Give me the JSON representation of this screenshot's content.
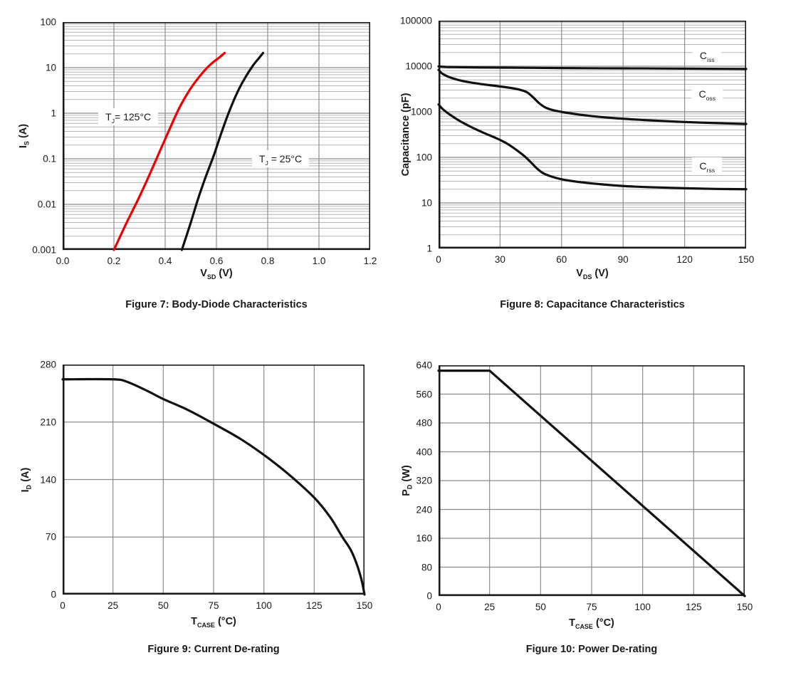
{
  "page": {
    "background": "#ffffff"
  },
  "colors": {
    "curve_black": "#111111",
    "curve_red": "#ee0000",
    "grid_minor": "#b6b6b6",
    "grid_major": "#8d8d8d",
    "axis": "#1a1a1a",
    "text": "#1a1a1a",
    "annotation_bg": "#ffffff"
  },
  "chart_data": [
    {
      "id": "figure-7",
      "type": "line",
      "caption": "Figure 7:  Body-Diode Characteristics",
      "xlabel": "V~SD~ (V)",
      "ylabel": "I~S~ (A)",
      "xscale": "linear",
      "yscale": "log",
      "xlim": [
        0,
        1.2
      ],
      "ylim": [
        0.001,
        100
      ],
      "xticks": {
        "values": [
          0,
          0.2,
          0.4,
          0.6,
          0.8,
          1.0,
          1.2
        ],
        "labels": [
          "0.0",
          "0.2",
          "0.4",
          "0.6",
          "0.8",
          "1.0",
          "1.2"
        ]
      },
      "yticks": {
        "values": [
          100,
          10,
          1,
          0.1,
          0.01,
          0.001
        ],
        "labels": [
          "100",
          "10",
          "1",
          "0.1",
          "0.01",
          "0.001"
        ]
      },
      "grid": {
        "vertical": [
          0.2,
          0.4,
          0.6,
          0.8,
          1.0
        ],
        "horizontal": "log-minor-and-major"
      },
      "series": [
        {
          "key": "tj-125c",
          "name": "T~J~= 125°C",
          "color": "#ee0000",
          "smooth": true,
          "points": [
            [
              0.2,
              0.001
            ],
            [
              0.25,
              0.004
            ],
            [
              0.295,
              0.013
            ],
            [
              0.335,
              0.04
            ],
            [
              0.375,
              0.13
            ],
            [
              0.415,
              0.42
            ],
            [
              0.455,
              1.3
            ],
            [
              0.495,
              3.2
            ],
            [
              0.535,
              6.5
            ],
            [
              0.575,
              11.5
            ],
            [
              0.61,
              16.5
            ],
            [
              0.632,
              21
            ]
          ]
        },
        {
          "key": "tj-25c",
          "name": "T~J~ = 25°C",
          "color": "#111111",
          "smooth": true,
          "points": [
            [
              0.465,
              0.001
            ],
            [
              0.5,
              0.004
            ],
            [
              0.528,
              0.013
            ],
            [
              0.558,
              0.04
            ],
            [
              0.59,
              0.12
            ],
            [
              0.62,
              0.38
            ],
            [
              0.65,
              1.1
            ],
            [
              0.682,
              2.9
            ],
            [
              0.712,
              6.0
            ],
            [
              0.742,
              11
            ],
            [
              0.765,
              16
            ],
            [
              0.782,
              21
            ]
          ]
        }
      ],
      "annotations": [
        {
          "key": "label-tj-125c",
          "text": "T~J~= 125°C",
          "x": 0.256,
          "y": 0.83
        },
        {
          "key": "label-tj-25c",
          "text": "T~J~ = 25°C",
          "x": 0.85,
          "y": 0.1
        }
      ]
    },
    {
      "id": "figure-8",
      "type": "line",
      "caption": "Figure 8:  Capacitance Characteristics",
      "xlabel": "V~DS~ (V)",
      "ylabel": "Capacitance (pF)",
      "xscale": "linear",
      "yscale": "log",
      "xlim": [
        0,
        150
      ],
      "ylim": [
        1,
        100000
      ],
      "xticks": {
        "values": [
          0,
          30,
          60,
          90,
          120,
          150
        ],
        "labels": [
          "0",
          "30",
          "60",
          "90",
          "120",
          "150"
        ]
      },
      "yticks": {
        "values": [
          100000,
          10000,
          1000,
          100,
          10,
          1
        ],
        "labels": [
          "100000",
          "10000",
          "1000",
          "100",
          "10",
          "1"
        ]
      },
      "grid": {
        "vertical": [
          30,
          60,
          90,
          120
        ],
        "horizontal": "log-minor-and-major"
      },
      "series": [
        {
          "key": "ciss",
          "name": "C~iss~",
          "color": "#111111",
          "smooth": true,
          "points": [
            [
              0,
              9900
            ],
            [
              5,
              9600
            ],
            [
              20,
              9400
            ],
            [
              40,
              9250
            ],
            [
              60,
              9100
            ],
            [
              80,
              9000
            ],
            [
              100,
              8950
            ],
            [
              120,
              8850
            ],
            [
              150,
              8700
            ]
          ]
        },
        {
          "key": "coss",
          "name": "C~oss~",
          "color": "#111111",
          "smooth": true,
          "points": [
            [
              0,
              8300
            ],
            [
              2,
              6800
            ],
            [
              6,
              5600
            ],
            [
              12,
              4700
            ],
            [
              20,
              4100
            ],
            [
              28,
              3700
            ],
            [
              34,
              3400
            ],
            [
              39,
              3100
            ],
            [
              43,
              2700
            ],
            [
              46,
              2100
            ],
            [
              49,
              1550
            ],
            [
              52,
              1250
            ],
            [
              56,
              1080
            ],
            [
              62,
              960
            ],
            [
              72,
              830
            ],
            [
              85,
              730
            ],
            [
              100,
              660
            ],
            [
              115,
              610
            ],
            [
              130,
              575
            ],
            [
              150,
              540
            ]
          ]
        },
        {
          "key": "crss",
          "name": "C~rss~",
          "color": "#111111",
          "smooth": true,
          "points": [
            [
              0,
              1450
            ],
            [
              2,
              1150
            ],
            [
              5,
              900
            ],
            [
              10,
              640
            ],
            [
              16,
              460
            ],
            [
              22,
              345
            ],
            [
              28,
              265
            ],
            [
              33,
              205
            ],
            [
              38,
              145
            ],
            [
              42,
              105
            ],
            [
              45,
              78
            ],
            [
              48,
              57
            ],
            [
              51,
              45
            ],
            [
              55,
              38
            ],
            [
              60,
              33
            ],
            [
              68,
              29
            ],
            [
              78,
              26
            ],
            [
              90,
              23.5
            ],
            [
              105,
              22
            ],
            [
              120,
              21
            ],
            [
              135,
              20.3
            ],
            [
              150,
              20
            ]
          ]
        }
      ],
      "annotations": [
        {
          "key": "label-ciss",
          "text": "C~iss~",
          "x": 131,
          "y": 17000
        },
        {
          "key": "label-coss",
          "text": "C~oss~",
          "x": 131,
          "y": 2500
        },
        {
          "key": "label-crss",
          "text": "C~rss~",
          "x": 131,
          "y": 66
        }
      ]
    },
    {
      "id": "figure-9",
      "type": "line",
      "caption": "Figure 9:  Current De-rating",
      "xlabel": "T~CASE~ (°C)",
      "ylabel": "I~D~ (A)",
      "xscale": "linear",
      "yscale": "linear",
      "xlim": [
        0,
        150
      ],
      "ylim": [
        0,
        280
      ],
      "xticks": {
        "values": [
          0,
          25,
          50,
          75,
          100,
          125,
          150
        ],
        "labels": [
          "0",
          "25",
          "50",
          "75",
          "100",
          "125",
          "150"
        ]
      },
      "yticks": {
        "values": [
          280,
          210,
          140,
          70,
          0
        ],
        "labels": [
          "280",
          "210",
          "140",
          "70",
          "0"
        ]
      },
      "grid": {
        "vertical": [
          25,
          50,
          75,
          100,
          125
        ],
        "horizontal_values": [
          70,
          140,
          210
        ]
      },
      "series": [
        {
          "key": "id-derating",
          "name": "I~D~ de-rating",
          "color": "#111111",
          "smooth": true,
          "points": [
            [
              0,
              262
            ],
            [
              25,
              262
            ],
            [
              32,
              259
            ],
            [
              42,
              248
            ],
            [
              50,
              238
            ],
            [
              62,
              225
            ],
            [
              75,
              208
            ],
            [
              88,
              190
            ],
            [
              100,
              170
            ],
            [
              112,
              147
            ],
            [
              125,
              118
            ],
            [
              133,
              94
            ],
            [
              139,
              70
            ],
            [
              143,
              55
            ],
            [
              146,
              38
            ],
            [
              148.5,
              18
            ],
            [
              150,
              0
            ]
          ]
        }
      ],
      "annotations": []
    },
    {
      "id": "figure-10",
      "type": "line",
      "caption": "Figure 10:  Power De-rating",
      "xlabel": "T~CASE~ (°C)",
      "ylabel": "P~D~ (W)",
      "xscale": "linear",
      "yscale": "linear",
      "xlim": [
        0,
        150
      ],
      "ylim": [
        0,
        640
      ],
      "xticks": {
        "values": [
          0,
          25,
          50,
          75,
          100,
          125,
          150
        ],
        "labels": [
          "0",
          "25",
          "50",
          "75",
          "100",
          "125",
          "150"
        ]
      },
      "yticks": {
        "values": [
          640,
          560,
          480,
          400,
          320,
          240,
          160,
          80,
          0
        ],
        "labels": [
          "640",
          "560",
          "480",
          "400",
          "320",
          "240",
          "160",
          "80",
          "0"
        ]
      },
      "grid": {
        "vertical": [
          25,
          50,
          75,
          100,
          125
        ],
        "horizontal_values": [
          80,
          160,
          240,
          320,
          400,
          480,
          560
        ]
      },
      "series": [
        {
          "key": "pd-derating",
          "name": "P~D~ de-rating",
          "color": "#111111",
          "smooth": false,
          "points": [
            [
              0,
              625
            ],
            [
              25,
              625
            ],
            [
              150,
              0
            ]
          ]
        }
      ],
      "annotations": []
    }
  ]
}
